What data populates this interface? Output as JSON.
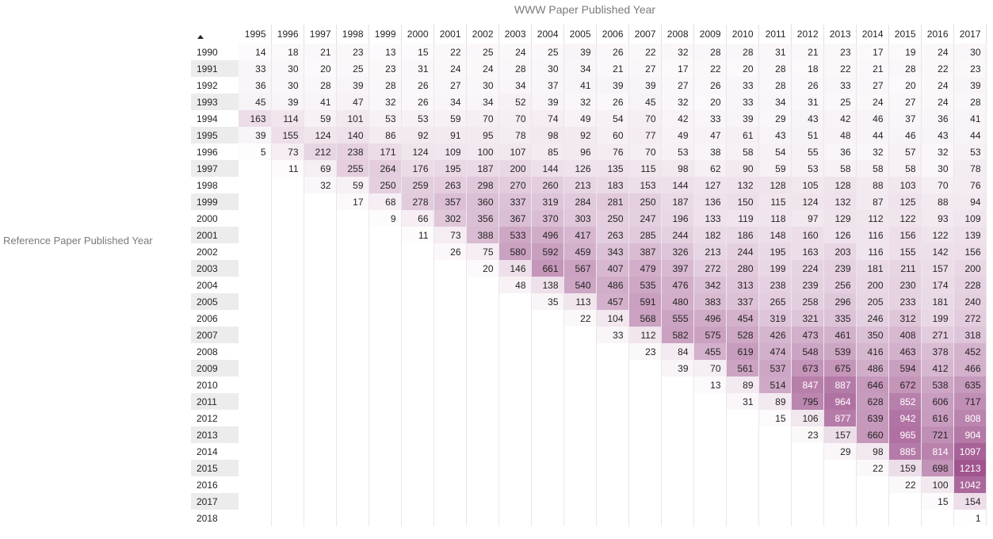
{
  "chart_data": {
    "type": "heatmap",
    "title": "",
    "xlabel": "WWW Paper Published Year",
    "ylabel": "Reference Paper Published Year",
    "color_low": "#ffffff",
    "color_high": "#a0558f",
    "sort_indicator": "sort-ascending-icon",
    "columns": [
      "1995",
      "1996",
      "1997",
      "1998",
      "1999",
      "2000",
      "2001",
      "2002",
      "2003",
      "2004",
      "2005",
      "2006",
      "2007",
      "2008",
      "2009",
      "2010",
      "2011",
      "2012",
      "2013",
      "2014",
      "2015",
      "2016",
      "2017"
    ],
    "rows": [
      "1990",
      "1991",
      "1992",
      "1993",
      "1994",
      "1995",
      "1996",
      "1997",
      "1998",
      "1999",
      "2000",
      "2001",
      "2002",
      "2003",
      "2004",
      "2005",
      "2006",
      "2007",
      "2008",
      "2009",
      "2010",
      "2011",
      "2012",
      "2013",
      "2014",
      "2015",
      "2016",
      "2017",
      "2018"
    ],
    "values": [
      [
        14,
        18,
        21,
        23,
        13,
        15,
        22,
        25,
        24,
        25,
        39,
        26,
        22,
        32,
        28,
        28,
        31,
        21,
        23,
        17,
        19,
        24,
        30
      ],
      [
        33,
        30,
        20,
        25,
        23,
        31,
        24,
        24,
        28,
        30,
        34,
        21,
        27,
        17,
        22,
        20,
        28,
        18,
        22,
        21,
        28,
        22,
        23
      ],
      [
        36,
        30,
        28,
        39,
        28,
        26,
        27,
        30,
        34,
        37,
        41,
        39,
        39,
        27,
        26,
        33,
        28,
        26,
        33,
        27,
        20,
        24,
        39
      ],
      [
        45,
        39,
        41,
        47,
        32,
        26,
        34,
        34,
        52,
        39,
        32,
        26,
        45,
        32,
        20,
        33,
        34,
        31,
        25,
        24,
        27,
        24,
        28
      ],
      [
        163,
        114,
        59,
        101,
        53,
        53,
        59,
        70,
        70,
        74,
        49,
        54,
        70,
        42,
        33,
        39,
        29,
        43,
        42,
        46,
        37,
        36,
        41
      ],
      [
        39,
        155,
        124,
        140,
        86,
        92,
        91,
        95,
        78,
        98,
        92,
        60,
        77,
        49,
        47,
        61,
        43,
        51,
        48,
        44,
        46,
        43,
        44
      ],
      [
        5,
        73,
        212,
        238,
        171,
        124,
        109,
        100,
        107,
        85,
        96,
        76,
        70,
        53,
        38,
        58,
        54,
        55,
        36,
        32,
        57,
        32,
        53
      ],
      [
        null,
        11,
        69,
        255,
        264,
        176,
        195,
        187,
        200,
        144,
        126,
        135,
        115,
        98,
        62,
        90,
        59,
        53,
        58,
        58,
        58,
        30,
        78
      ],
      [
        null,
        null,
        32,
        59,
        250,
        259,
        263,
        298,
        270,
        260,
        213,
        183,
        153,
        144,
        127,
        132,
        128,
        105,
        128,
        88,
        103,
        70,
        76
      ],
      [
        null,
        null,
        null,
        17,
        68,
        278,
        357,
        360,
        337,
        319,
        284,
        281,
        250,
        187,
        136,
        150,
        115,
        124,
        132,
        87,
        125,
        88,
        94
      ],
      [
        null,
        null,
        null,
        null,
        9,
        66,
        302,
        356,
        367,
        370,
        303,
        250,
        247,
        196,
        133,
        119,
        118,
        97,
        129,
        112,
        122,
        93,
        109
      ],
      [
        null,
        null,
        null,
        null,
        null,
        11,
        73,
        388,
        533,
        496,
        417,
        263,
        285,
        244,
        182,
        186,
        148,
        160,
        126,
        116,
        156,
        122,
        139
      ],
      [
        null,
        null,
        null,
        null,
        null,
        null,
        26,
        75,
        580,
        592,
        459,
        343,
        387,
        326,
        213,
        244,
        195,
        163,
        203,
        116,
        155,
        142,
        156
      ],
      [
        null,
        null,
        null,
        null,
        null,
        null,
        null,
        20,
        146,
        661,
        567,
        407,
        479,
        397,
        272,
        280,
        199,
        224,
        239,
        181,
        211,
        157,
        200
      ],
      [
        null,
        null,
        null,
        null,
        null,
        null,
        null,
        null,
        48,
        138,
        540,
        486,
        535,
        476,
        342,
        313,
        238,
        239,
        256,
        200,
        230,
        174,
        228
      ],
      [
        null,
        null,
        null,
        null,
        null,
        null,
        null,
        null,
        null,
        35,
        113,
        457,
        591,
        480,
        383,
        337,
        265,
        258,
        296,
        205,
        233,
        181,
        240
      ],
      [
        null,
        null,
        null,
        null,
        null,
        null,
        null,
        null,
        null,
        null,
        22,
        104,
        568,
        555,
        496,
        454,
        319,
        321,
        335,
        246,
        312,
        199,
        272
      ],
      [
        null,
        null,
        null,
        null,
        null,
        null,
        null,
        null,
        null,
        null,
        null,
        33,
        112,
        582,
        575,
        528,
        426,
        473,
        461,
        350,
        408,
        271,
        318
      ],
      [
        null,
        null,
        null,
        null,
        null,
        null,
        null,
        null,
        null,
        null,
        null,
        null,
        23,
        84,
        455,
        619,
        474,
        548,
        539,
        416,
        463,
        378,
        452
      ],
      [
        null,
        null,
        null,
        null,
        null,
        null,
        null,
        null,
        null,
        null,
        null,
        null,
        null,
        39,
        70,
        561,
        537,
        673,
        675,
        486,
        594,
        412,
        466
      ],
      [
        null,
        null,
        null,
        null,
        null,
        null,
        null,
        null,
        null,
        null,
        null,
        null,
        null,
        null,
        13,
        89,
        514,
        847,
        887,
        646,
        672,
        538,
        635
      ],
      [
        null,
        null,
        null,
        null,
        null,
        null,
        null,
        null,
        null,
        null,
        null,
        null,
        null,
        null,
        null,
        31,
        89,
        795,
        964,
        628,
        852,
        606,
        717
      ],
      [
        null,
        null,
        null,
        null,
        null,
        null,
        null,
        null,
        null,
        null,
        null,
        null,
        null,
        null,
        null,
        null,
        15,
        106,
        877,
        639,
        942,
        616,
        808
      ],
      [
        null,
        null,
        null,
        null,
        null,
        null,
        null,
        null,
        null,
        null,
        null,
        null,
        null,
        null,
        null,
        null,
        null,
        23,
        157,
        660,
        965,
        721,
        904
      ],
      [
        null,
        null,
        null,
        null,
        null,
        null,
        null,
        null,
        null,
        null,
        null,
        null,
        null,
        null,
        null,
        null,
        null,
        null,
        29,
        98,
        885,
        814,
        1097
      ],
      [
        null,
        null,
        null,
        null,
        null,
        null,
        null,
        null,
        null,
        null,
        null,
        null,
        null,
        null,
        null,
        null,
        null,
        null,
        null,
        22,
        159,
        698,
        1213
      ],
      [
        null,
        null,
        null,
        null,
        null,
        null,
        null,
        null,
        null,
        null,
        null,
        null,
        null,
        null,
        null,
        null,
        null,
        null,
        null,
        null,
        22,
        100,
        1042
      ],
      [
        null,
        null,
        null,
        null,
        null,
        null,
        null,
        null,
        null,
        null,
        null,
        null,
        null,
        null,
        null,
        null,
        null,
        null,
        null,
        null,
        null,
        15,
        154
      ],
      [
        null,
        null,
        null,
        null,
        null,
        null,
        null,
        null,
        null,
        null,
        null,
        null,
        null,
        null,
        null,
        null,
        null,
        null,
        null,
        null,
        null,
        null,
        1
      ]
    ]
  }
}
